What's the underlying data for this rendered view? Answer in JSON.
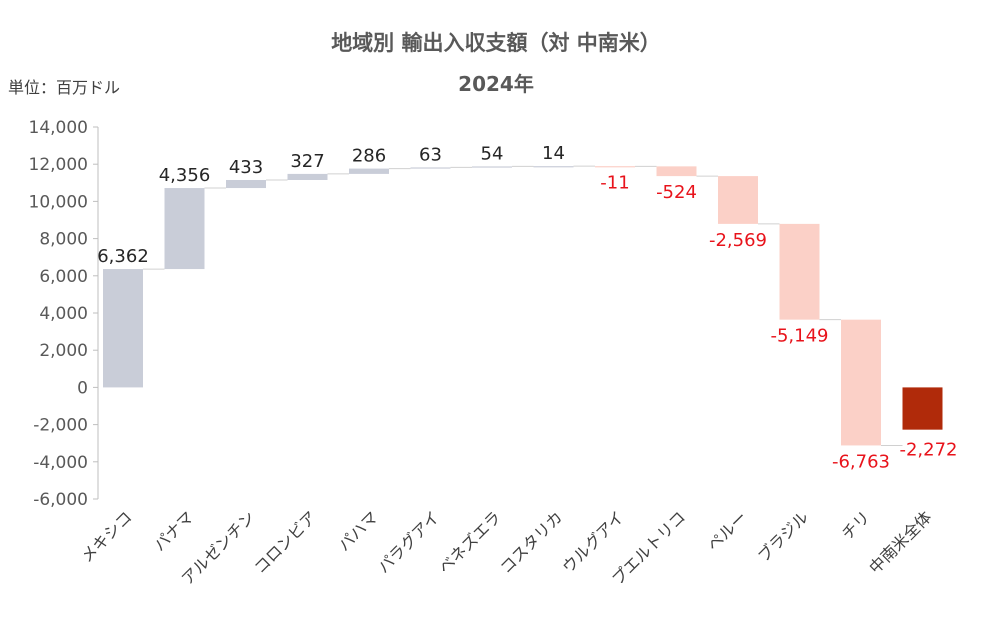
{
  "chart_data": {
    "type": "bar",
    "subtype": "waterfall",
    "title": "地域別 輸出入収支額（対 中南米）",
    "subtitle": "2024年",
    "unit_label": "単位：百万ドル",
    "categories": [
      "メキシコ",
      "パナマ",
      "アルゼンチン",
      "コロンビア",
      "パハマ",
      "パラグアイ",
      "ベネズエラ",
      "コスタリカ",
      "ウルグアイ",
      "プエルトリコ",
      "ペルー",
      "ブラジル",
      "チリ",
      "中南米全体"
    ],
    "values": [
      6362,
      4356,
      433,
      327,
      286,
      63,
      54,
      14,
      -11,
      -524,
      -2569,
      -5149,
      -6763,
      -2272
    ],
    "value_labels": [
      "6,362",
      "4,356",
      "433",
      "327",
      "286",
      "63",
      "54",
      "14",
      "-11",
      "-524",
      "-2,569",
      "-5,149",
      "-6,763",
      "-2,272"
    ],
    "total_index": 13,
    "ylim": [
      -6000,
      14000
    ],
    "yticks": [
      14000,
      12000,
      10000,
      8000,
      6000,
      4000,
      2000,
      0,
      -2000,
      -4000,
      -6000
    ],
    "ytick_labels": [
      "14,000",
      "12,000",
      "10,000",
      "8,000",
      "6,000",
      "4,000",
      "2,000",
      "0",
      "-2,000",
      "-4,000",
      "-6,000"
    ],
    "grid": false,
    "colors": {
      "positive": "#c9cdd8",
      "negative": "#fbd0c7",
      "total": "#b02a0a",
      "positive_label": "#262626",
      "negative_label": "#e8131b",
      "connector": "#d0d0d0",
      "axis": "#bfbfbf"
    }
  }
}
